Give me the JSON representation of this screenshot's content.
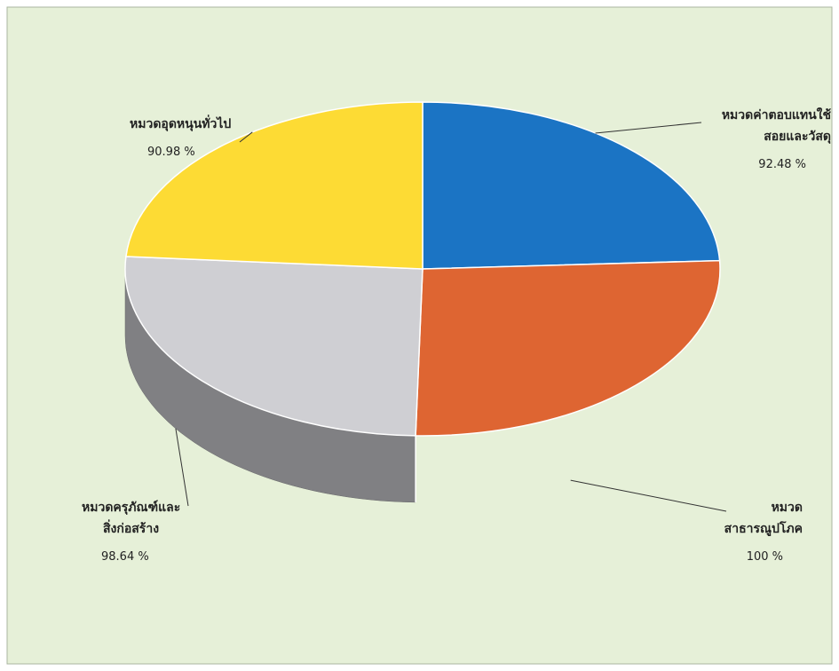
{
  "colors": {
    "background": "#e6f0d8",
    "border": "#a9b5a0"
  },
  "chart_data": {
    "type": "pie",
    "style": "3d",
    "grid": false,
    "legend": "none",
    "slices": [
      {
        "label": "หมวดค่าตอบแทนใช้สอยและวัสดุ",
        "label_lines": [
          "หมวดค่าตอบแทนใช้",
          "สอยและวัสดุ"
        ],
        "value": 92.48,
        "display": "92.48 %",
        "color": "#1b74c4"
      },
      {
        "label": "หมวดสาธารณูปโภค",
        "label_lines": [
          "หมวด",
          "สาธารณูปโภค"
        ],
        "value": 100,
        "display": "100 %",
        "color": "#de6532"
      },
      {
        "label": "หมวดครุภัณฑ์และสิ่งก่อสร้าง",
        "label_lines": [
          "หมวดครุภัณฑ์และ",
          "สิ่งก่อสร้าง"
        ],
        "value": 98.64,
        "display": "98.64 %",
        "color": "#cfcfd3"
      },
      {
        "label": "หมวดอุดหนุนทั่วไป",
        "label_lines": [
          "หมวดอุดหนุนทั่วไป"
        ],
        "value": 90.98,
        "display": "90.98 %",
        "color": "#fddb34"
      }
    ]
  }
}
